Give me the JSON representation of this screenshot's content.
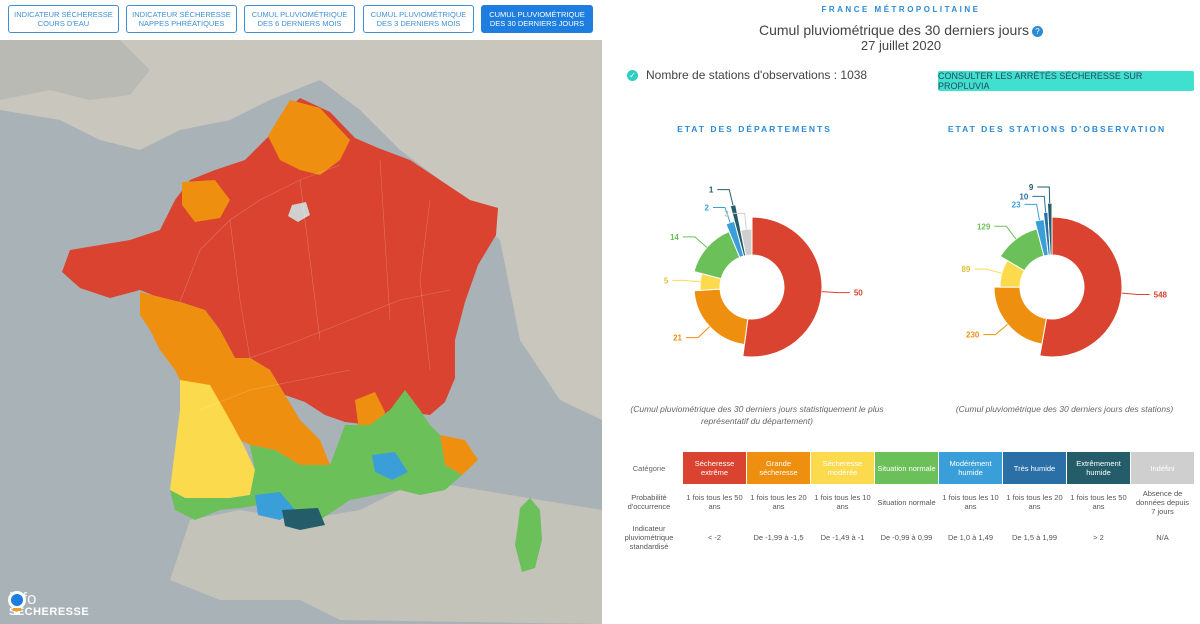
{
  "tabs": [
    {
      "label": "INDICATEUR SÉCHERESSE COURS D'EAU",
      "active": false
    },
    {
      "label": "INDICATEUR SÉCHERESSE NAPPES PHRÉATIQUES",
      "active": false
    },
    {
      "label": "CUMUL PLUVIOMÉTRIQUE DES 6 DERNIERS MOIS",
      "active": false
    },
    {
      "label": "CUMUL PLUVIOMÉTRIQUE DES 3 DERNIERS MOIS",
      "active": false
    },
    {
      "label": "CUMUL PLUVIOMÉTRIQUE DES 30 DERNIERS JOURS",
      "active": true
    }
  ],
  "brand": {
    "line1": "info",
    "line2": "SÉCHERESSE"
  },
  "panel": {
    "region": "FRANCE MÉTROPOLITAINE",
    "title": "Cumul pluviométrique des 30 derniers jours",
    "date": "27 juillet 2020",
    "stations_text": "Nombre de stations d'observations : 1038",
    "propluvia_label": "CONSULTER LES ARRÊTÉS SÉCHERESSE SUR PROPLUVIA"
  },
  "colors": {
    "extreme": "#d9432f",
    "grande": "#ef8f0f",
    "moderee": "#fbdb4d",
    "normale": "#6cc05a",
    "mod_humide": "#3a9fd8",
    "tres_humide": "#2a6fa6",
    "extr_humide": "#245c6a",
    "indefini": "#cfcfcf"
  },
  "chart_data": [
    {
      "type": "pie",
      "title": "ETAT DES DÉPARTEMENTS",
      "caption": "(Cumul pluviométrique des 30 derniers jours statistiquement le plus représentatif du département)",
      "categories": [
        "Sécheresse extrême",
        "Grande sécheresse",
        "Sécheresse modérée",
        "Situation normale",
        "Modérément humide",
        "Très humide",
        "Extrêmement humide",
        "Indéfini"
      ],
      "values": [
        50,
        21,
        5,
        14,
        2,
        0,
        1,
        3
      ],
      "labels": [
        "50",
        "21",
        "5",
        "14",
        "2",
        "",
        "1",
        "3"
      ]
    },
    {
      "type": "pie",
      "title": "ETAT DES STATIONS D'OBSERVATION",
      "caption": "(Cumul pluviométrique des 30 derniers jours des stations)",
      "categories": [
        "Sécheresse extrême",
        "Grande sécheresse",
        "Sécheresse modérée",
        "Situation normale",
        "Modérément humide",
        "Très humide",
        "Extrêmement humide",
        "Indéfini"
      ],
      "values": [
        548,
        230,
        89,
        129,
        23,
        10,
        9,
        0
      ],
      "labels": [
        "548",
        "230",
        "89",
        "129",
        "23",
        "10",
        "9",
        ""
      ]
    }
  ],
  "legend": {
    "header_label": "Catégorie",
    "categories": [
      "Sécheresse extrême",
      "Grande sécheresse",
      "Sécheresse modérée",
      "Situation normale",
      "Modérément humide",
      "Très humide",
      "Extrêmement humide",
      "Indéfini"
    ],
    "prob_label": "Probabilité d'occurrence",
    "prob": [
      "1 fois tous les 50 ans",
      "1 fois tous les 20 ans",
      "1 fois tous les 10 ans",
      "Situation normale",
      "1 fois tous les 10 ans",
      "1 fois tous les 20 ans",
      "1 fois tous les 50 ans",
      "Absence de données depuis 7 jours"
    ],
    "ind_label": "Indicateur pluviométrique standardisé",
    "ind": [
      "< -2",
      "De -1,99 à -1,5",
      "De -1,49 à -1",
      "De -0,99 à 0,99",
      "De 1,0 à 1,49",
      "De 1,5 à 1,99",
      "> 2",
      "N/A"
    ]
  }
}
